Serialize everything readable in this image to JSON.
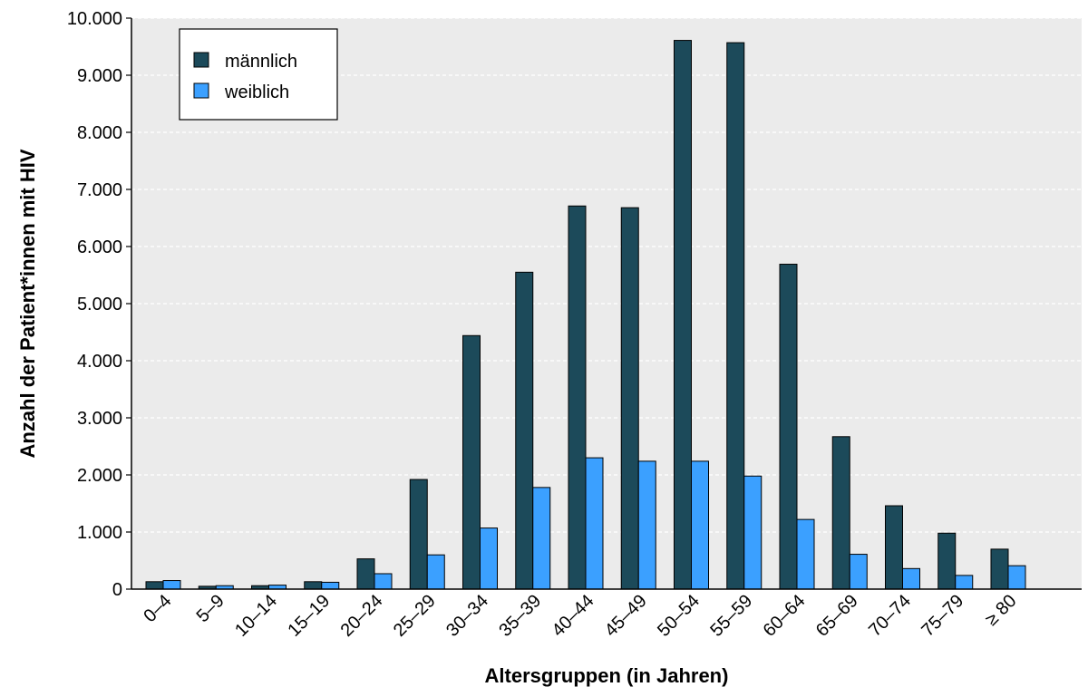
{
  "chart_data": {
    "type": "bar",
    "xlabel": "Altersgruppen (in Jahren)",
    "ylabel": "Anzahl der Patient*innen mit HIV",
    "ylim": [
      0,
      10000
    ],
    "yticks": [
      0,
      1000,
      2000,
      3000,
      4000,
      5000,
      6000,
      7000,
      8000,
      9000,
      10000
    ],
    "ytick_labels": [
      "0",
      "1.000",
      "2.000",
      "3.000",
      "4.000",
      "5.000",
      "6.000",
      "7.000",
      "8.000",
      "9.000",
      "10.000"
    ],
    "categories": [
      "0–4",
      "5–9",
      "10–14",
      "15–19",
      "20–24",
      "25–29",
      "30–34",
      "35–39",
      "40–44",
      "45–49",
      "50–54",
      "55–59",
      "60–64",
      "65–69",
      "70–74",
      "75–79",
      "≥ 80"
    ],
    "series": [
      {
        "name": "männlich",
        "color": "#1c4a5a",
        "values": [
          130,
          50,
          60,
          130,
          530,
          1920,
          4440,
          5550,
          6710,
          6680,
          9610,
          9570,
          5690,
          2670,
          1460,
          980,
          700
        ]
      },
      {
        "name": "weiblich",
        "color": "#3ba0ff",
        "values": [
          150,
          60,
          70,
          120,
          270,
          600,
          1070,
          1780,
          2300,
          2240,
          2240,
          1980,
          1220,
          610,
          360,
          240,
          410
        ]
      }
    ],
    "grid": true,
    "plot_background": "#ebebeb",
    "legend_position": "top-left"
  }
}
